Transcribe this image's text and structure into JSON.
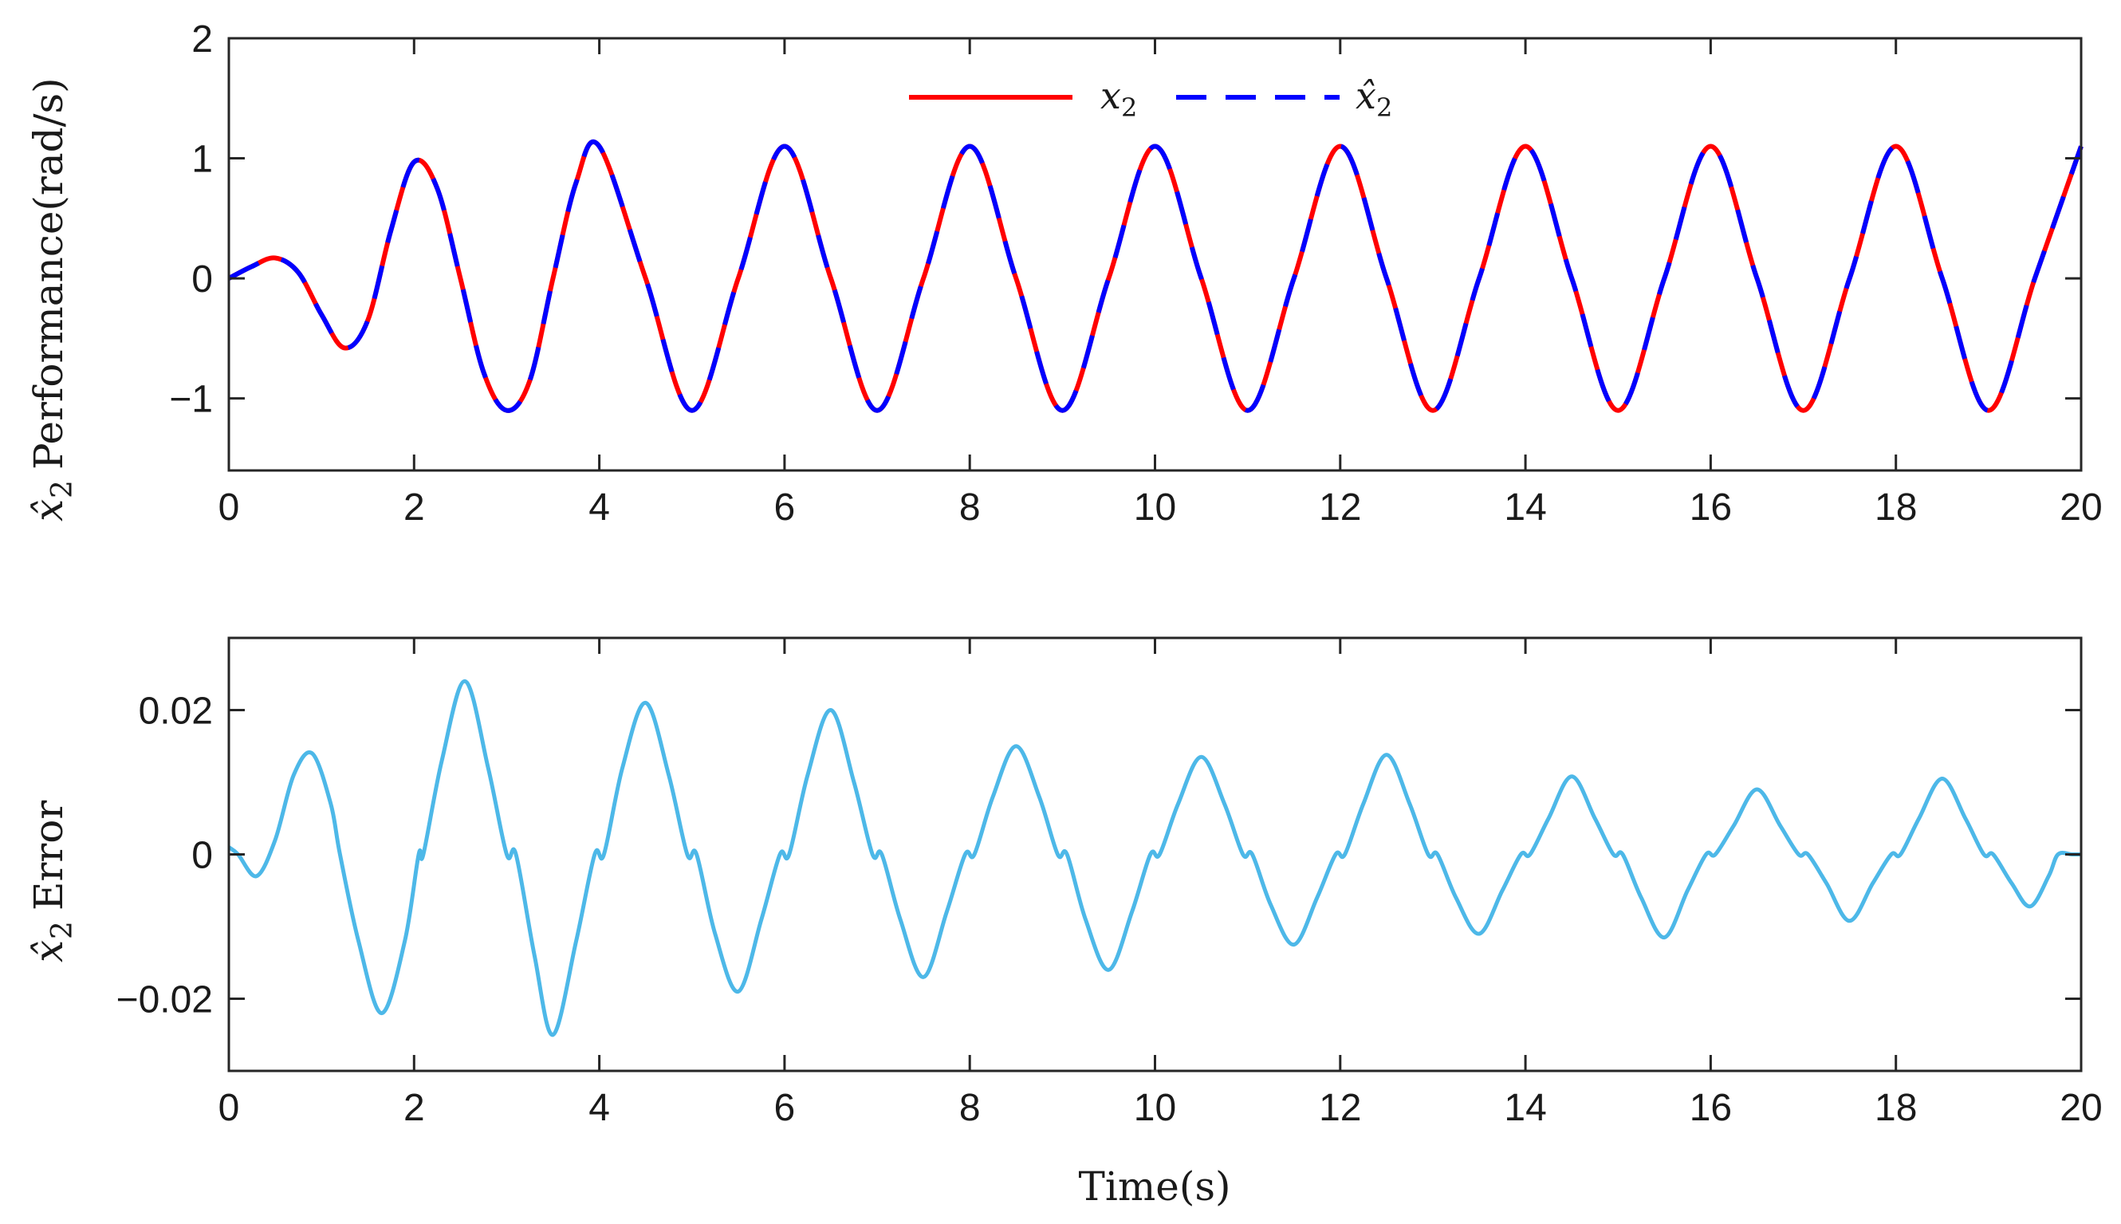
{
  "colors": {
    "x2": "#ff0000",
    "x2_hat": "#0000ff",
    "error": "#4db8e8",
    "axes": "#262626",
    "background": "#ffffff"
  },
  "chart_data": [
    {
      "type": "line",
      "title": "",
      "xlabel": "",
      "ylabel": "x̂₂ Performance(rad/s)",
      "ylabel_parts": {
        "symbol": "x̂",
        "subscript": "2",
        "text": "Performance(rad/s)"
      },
      "xlim": [
        0,
        20
      ],
      "ylim": [
        -1.6,
        2
      ],
      "xticks": [
        0,
        2,
        4,
        6,
        8,
        10,
        12,
        14,
        16,
        18,
        20
      ],
      "xtick_labels": [
        "0",
        "2",
        "4",
        "6",
        "8",
        "10",
        "12",
        "14",
        "16",
        "18",
        "20"
      ],
      "yticks": [
        -1,
        0,
        1,
        2
      ],
      "ytick_labels": [
        "−1",
        "0",
        "1",
        "2"
      ],
      "grid": false,
      "legend_position": "top-center",
      "series": [
        {
          "name": "x₂",
          "name_parts": {
            "symbol": "x",
            "subscript": "2"
          },
          "style": "solid",
          "x": [
            0,
            0.25,
            0.5,
            0.75,
            1.0,
            1.25,
            1.5,
            1.75,
            2.0,
            2.25,
            2.5,
            2.75,
            3.0,
            3.25,
            3.5,
            3.75,
            4.0,
            4.5,
            5.0,
            5.5,
            6.0,
            6.5,
            7.0,
            7.5,
            8.0,
            8.5,
            9.0,
            9.5,
            10.0,
            10.5,
            11.0,
            11.5,
            12.0,
            12.5,
            13.0,
            13.5,
            14.0,
            14.5,
            15.0,
            15.5,
            16.0,
            16.5,
            17.0,
            17.5,
            18.0,
            18.5,
            19.0,
            19.5,
            20.0
          ],
          "y": [
            0,
            0.1,
            0.17,
            0.05,
            -0.3,
            -0.58,
            -0.35,
            0.4,
            0.97,
            0.75,
            0.0,
            -0.78,
            -1.1,
            -0.85,
            0.0,
            0.8,
            1.1,
            0.0,
            -1.1,
            0.0,
            1.1,
            0.0,
            -1.1,
            0.0,
            1.1,
            0.0,
            -1.1,
            0.0,
            1.1,
            0.0,
            -1.1,
            0.0,
            1.1,
            0.0,
            -1.1,
            0.0,
            1.1,
            0.0,
            -1.1,
            0.0,
            1.1,
            0.0,
            -1.1,
            0.0,
            1.1,
            0.0,
            -1.1,
            0.0,
            1.1
          ]
        },
        {
          "name": "x̂₂",
          "name_parts": {
            "symbol": "x̂",
            "subscript": "2"
          },
          "style": "dashed",
          "x": [
            0,
            0.25,
            0.5,
            0.75,
            1.0,
            1.25,
            1.5,
            1.75,
            2.0,
            2.25,
            2.5,
            2.75,
            3.0,
            3.25,
            3.5,
            3.75,
            4.0,
            4.5,
            5.0,
            5.5,
            6.0,
            6.5,
            7.0,
            7.5,
            8.0,
            8.5,
            9.0,
            9.5,
            10.0,
            10.5,
            11.0,
            11.5,
            12.0,
            12.5,
            13.0,
            13.5,
            14.0,
            14.5,
            15.0,
            15.5,
            16.0,
            16.5,
            17.0,
            17.5,
            18.0,
            18.5,
            19.0,
            19.5,
            20.0
          ],
          "y": [
            0,
            0.1,
            0.17,
            0.05,
            -0.3,
            -0.58,
            -0.35,
            0.4,
            0.97,
            0.75,
            0.0,
            -0.78,
            -1.1,
            -0.85,
            0.0,
            0.8,
            1.1,
            0.0,
            -1.1,
            0.0,
            1.1,
            0.0,
            -1.1,
            0.0,
            1.1,
            0.0,
            -1.1,
            0.0,
            1.1,
            0.0,
            -1.1,
            0.0,
            1.1,
            0.0,
            -1.1,
            0.0,
            1.1,
            0.0,
            -1.1,
            0.0,
            1.1,
            0.0,
            -1.1,
            0.0,
            1.1,
            0.0,
            -1.1,
            0.0,
            1.1
          ]
        }
      ]
    },
    {
      "type": "line",
      "title": "",
      "xlabel": "Time(s)",
      "ylabel": "x̂₂ Error",
      "ylabel_parts": {
        "symbol": "x̂",
        "subscript": "2",
        "text": "Error"
      },
      "xlim": [
        0,
        20
      ],
      "ylim": [
        -0.03,
        0.03
      ],
      "xticks": [
        0,
        2,
        4,
        6,
        8,
        10,
        12,
        14,
        16,
        18,
        20
      ],
      "xtick_labels": [
        "0",
        "2",
        "4",
        "6",
        "8",
        "10",
        "12",
        "14",
        "16",
        "18",
        "20"
      ],
      "yticks": [
        -0.02,
        0,
        0.02
      ],
      "ytick_labels": [
        "−0.02",
        "0",
        "0.02"
      ],
      "grid": false,
      "series": [
        {
          "style": "solid",
          "x": [
            0,
            0.1,
            0.3,
            0.5,
            0.7,
            0.9,
            1.1,
            1.2,
            1.4,
            1.65,
            1.9,
            2.05,
            2.1,
            2.3,
            2.55,
            2.8,
            3.0,
            3.1,
            3.3,
            3.5,
            3.75,
            3.95,
            4.05,
            4.25,
            4.5,
            4.75,
            4.95,
            5.05,
            5.25,
            5.5,
            5.75,
            5.95,
            6.05,
            6.25,
            6.5,
            6.75,
            6.95,
            7.05,
            7.25,
            7.5,
            7.75,
            7.95,
            8.05,
            8.25,
            8.5,
            8.75,
            8.95,
            9.05,
            9.25,
            9.5,
            9.75,
            9.95,
            10.05,
            10.25,
            10.5,
            10.75,
            10.95,
            11.05,
            11.25,
            11.5,
            11.75,
            11.95,
            12.05,
            12.25,
            12.5,
            12.75,
            12.95,
            13.05,
            13.25,
            13.5,
            13.75,
            13.95,
            14.05,
            14.25,
            14.5,
            14.75,
            14.95,
            15.05,
            15.25,
            15.5,
            15.75,
            15.95,
            16.05,
            16.25,
            16.5,
            16.75,
            16.95,
            17.05,
            17.25,
            17.5,
            17.75,
            17.95,
            18.05,
            18.25,
            18.5,
            18.75,
            18.95,
            19.05,
            19.25,
            19.45,
            19.65,
            19.75,
            19.9,
            20.0
          ],
          "y": [
            0.001,
            0.0,
            -0.003,
            0.002,
            0.011,
            0.014,
            0.007,
            0.0,
            -0.012,
            -0.022,
            -0.012,
            0.0,
            0.0,
            0.013,
            0.024,
            0.012,
            0.0,
            0.0,
            -0.014,
            -0.025,
            -0.012,
            0.0,
            0.0,
            0.012,
            0.021,
            0.011,
            0.0,
            0.0,
            -0.011,
            -0.019,
            -0.009,
            0.0,
            0.0,
            0.011,
            0.02,
            0.01,
            0.0,
            0.0,
            -0.009,
            -0.017,
            -0.008,
            0.0,
            0.0,
            0.008,
            0.015,
            0.008,
            0.0,
            0.0,
            -0.009,
            -0.016,
            -0.008,
            0.0,
            0.0,
            0.007,
            0.0135,
            0.007,
            0.0,
            0.0,
            -0.007,
            -0.0125,
            -0.006,
            0.0,
            0.0,
            0.007,
            0.0138,
            0.007,
            0.0,
            0.0,
            -0.006,
            -0.011,
            -0.005,
            0.0,
            0.0,
            0.005,
            0.0108,
            0.005,
            0.0,
            0.0,
            -0.006,
            -0.0115,
            -0.005,
            0.0,
            0.0,
            0.004,
            0.009,
            0.004,
            0.0,
            0.0,
            -0.004,
            -0.0092,
            -0.004,
            0.0,
            0.0,
            0.005,
            0.0105,
            0.005,
            0.0,
            0.0,
            -0.004,
            -0.0072,
            -0.003,
            0.0,
            0.0,
            0.0
          ]
        }
      ]
    }
  ]
}
